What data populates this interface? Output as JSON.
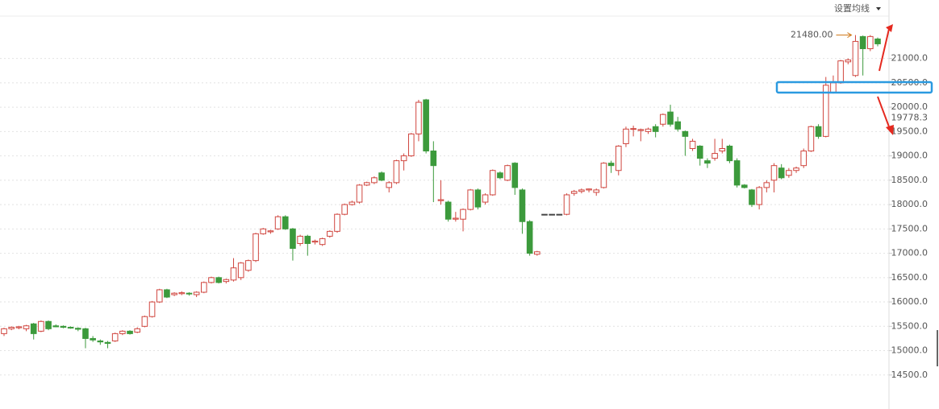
{
  "chart_data": {
    "type": "candlestick",
    "menu_label": "设置均线",
    "ylim": [
      14100,
      22200
    ],
    "yticks": [
      {
        "value": 14500,
        "label": "14500.0"
      },
      {
        "value": 15000,
        "label": "15000.0"
      },
      {
        "value": 15500,
        "label": "15500.0"
      },
      {
        "value": 16000,
        "label": "16000.0"
      },
      {
        "value": 16500,
        "label": "16500.0"
      },
      {
        "value": 17000,
        "label": "17000.0"
      },
      {
        "value": 17500,
        "label": "17500.0"
      },
      {
        "value": 18000,
        "label": "18000.0"
      },
      {
        "value": 18500,
        "label": "18500.0"
      },
      {
        "value": 19000,
        "label": "19000.0"
      },
      {
        "value": 19500,
        "label": "19500.0"
      },
      {
        "value": 20000,
        "label": "20000.0"
      },
      {
        "value": 20500,
        "label": "20500.0"
      },
      {
        "value": 21000,
        "label": "21000.0"
      }
    ],
    "price_marker": 19778.3,
    "high_annotation": {
      "value": 21480,
      "label": "21480.00"
    },
    "grid": true,
    "up_color": "#d0463f",
    "down_color": "#3c9a3c",
    "ohlc": [
      [
        15350,
        15470,
        15300,
        15450
      ],
      [
        15450,
        15500,
        15420,
        15480
      ],
      [
        15470,
        15510,
        15440,
        15490
      ],
      [
        15450,
        15530,
        15400,
        15510
      ],
      [
        15550,
        15570,
        15230,
        15350
      ],
      [
        15400,
        15620,
        15380,
        15600
      ],
      [
        15600,
        15620,
        15420,
        15450
      ],
      [
        15510,
        15540,
        15480,
        15490
      ],
      [
        15500,
        15520,
        15460,
        15480
      ],
      [
        15480,
        15500,
        15450,
        15470
      ],
      [
        15460,
        15480,
        15400,
        15440
      ],
      [
        15450,
        15470,
        15050,
        15250
      ],
      [
        15250,
        15300,
        15180,
        15220
      ],
      [
        15200,
        15230,
        15120,
        15180
      ],
      [
        15170,
        15200,
        15050,
        15150
      ],
      [
        15200,
        15370,
        15180,
        15350
      ],
      [
        15350,
        15420,
        15320,
        15400
      ],
      [
        15400,
        15420,
        15330,
        15350
      ],
      [
        15380,
        15480,
        15360,
        15450
      ],
      [
        15500,
        15720,
        15480,
        15700
      ],
      [
        15700,
        16020,
        15680,
        16000
      ],
      [
        16000,
        16270,
        15980,
        16250
      ],
      [
        16250,
        16270,
        16080,
        16100
      ],
      [
        16150,
        16200,
        16120,
        16180
      ],
      [
        16170,
        16220,
        16140,
        16190
      ],
      [
        16180,
        16200,
        16130,
        16170
      ],
      [
        16150,
        16220,
        16100,
        16200
      ],
      [
        16200,
        16420,
        16180,
        16400
      ],
      [
        16400,
        16520,
        16380,
        16500
      ],
      [
        16500,
        16520,
        16380,
        16400
      ],
      [
        16420,
        16480,
        16380,
        16460
      ],
      [
        16450,
        16900,
        16420,
        16700
      ],
      [
        16500,
        16820,
        16450,
        16800
      ],
      [
        16650,
        16870,
        16620,
        16850
      ],
      [
        16850,
        17420,
        16820,
        17400
      ],
      [
        17400,
        17520,
        17380,
        17500
      ],
      [
        17440,
        17480,
        17400,
        17460
      ],
      [
        17500,
        17780,
        17480,
        17750
      ],
      [
        17750,
        17780,
        17480,
        17500
      ],
      [
        17500,
        17520,
        16850,
        17100
      ],
      [
        17200,
        17380,
        17150,
        17350
      ],
      [
        17350,
        17380,
        16950,
        17200
      ],
      [
        17230,
        17280,
        17180,
        17250
      ],
      [
        17180,
        17320,
        17150,
        17300
      ],
      [
        17350,
        17470,
        17320,
        17450
      ],
      [
        17450,
        17820,
        17420,
        17800
      ],
      [
        17800,
        18020,
        17780,
        18000
      ],
      [
        18000,
        18080,
        17980,
        18050
      ],
      [
        18050,
        18420,
        18020,
        18400
      ],
      [
        18400,
        18470,
        18380,
        18450
      ],
      [
        18450,
        18580,
        18420,
        18550
      ],
      [
        18650,
        18680,
        18480,
        18500
      ],
      [
        18350,
        18480,
        18250,
        18450
      ],
      [
        18450,
        18920,
        18420,
        18900
      ],
      [
        18900,
        19050,
        18700,
        19000
      ],
      [
        19000,
        19470,
        18980,
        19450
      ],
      [
        19450,
        20150,
        19300,
        20100
      ],
      [
        20150,
        20170,
        19050,
        19100
      ],
      [
        19100,
        19300,
        18050,
        18800
      ],
      [
        18080,
        18500,
        18000,
        18100
      ],
      [
        18050,
        18080,
        17650,
        17700
      ],
      [
        17700,
        17850,
        17650,
        17720
      ],
      [
        17700,
        17920,
        17450,
        17900
      ],
      [
        17900,
        18320,
        17880,
        18300
      ],
      [
        18300,
        18330,
        17900,
        17950
      ],
      [
        18050,
        18230,
        18000,
        18200
      ],
      [
        18200,
        18720,
        18180,
        18700
      ],
      [
        18650,
        18680,
        18520,
        18550
      ],
      [
        18500,
        18820,
        18480,
        18800
      ],
      [
        18850,
        18870,
        18200,
        18350
      ],
      [
        18300,
        18330,
        17400,
        17650
      ],
      [
        17650,
        17680,
        16950,
        17000
      ],
      [
        16980,
        17050,
        16950,
        17030
      ],
      [
        17800,
        17800,
        17800,
        17800
      ],
      [
        17800,
        17800,
        17800,
        17800
      ],
      [
        17800,
        17800,
        17800,
        17800
      ],
      [
        17800,
        18230,
        17780,
        18200
      ],
      [
        18230,
        18300,
        18180,
        18270
      ],
      [
        18270,
        18330,
        18230,
        18300
      ],
      [
        18300,
        18330,
        18250,
        18320
      ],
      [
        18250,
        18330,
        18180,
        18300
      ],
      [
        18350,
        18870,
        18330,
        18850
      ],
      [
        18850,
        18900,
        18650,
        18800
      ],
      [
        18700,
        19220,
        18600,
        19200
      ],
      [
        19250,
        19600,
        19180,
        19550
      ],
      [
        19550,
        19620,
        19400,
        19560
      ],
      [
        19520,
        19560,
        19300,
        19540
      ],
      [
        19500,
        19580,
        19450,
        19550
      ],
      [
        19600,
        19650,
        19380,
        19500
      ],
      [
        19650,
        19870,
        19600,
        19850
      ],
      [
        19900,
        20050,
        19600,
        19650
      ],
      [
        19700,
        19800,
        19500,
        19550
      ],
      [
        19500,
        19520,
        19000,
        19400
      ],
      [
        19150,
        19350,
        19100,
        19300
      ],
      [
        19200,
        19220,
        18800,
        18950
      ],
      [
        18900,
        18950,
        18750,
        18850
      ],
      [
        18950,
        19350,
        18900,
        19050
      ],
      [
        19100,
        19350,
        19050,
        19150
      ],
      [
        19200,
        19230,
        18850,
        18900
      ],
      [
        18900,
        18950,
        18350,
        18400
      ],
      [
        18400,
        18420,
        18330,
        18350
      ],
      [
        18300,
        18320,
        17950,
        18000
      ],
      [
        18000,
        18380,
        17900,
        18350
      ],
      [
        18350,
        18500,
        18250,
        18450
      ],
      [
        18500,
        18850,
        18250,
        18800
      ],
      [
        18750,
        18830,
        18520,
        18550
      ],
      [
        18600,
        18750,
        18550,
        18700
      ],
      [
        18700,
        18780,
        18650,
        18750
      ],
      [
        18800,
        19150,
        18750,
        19100
      ],
      [
        19100,
        19620,
        19080,
        19600
      ],
      [
        19600,
        19650,
        19350,
        19400
      ],
      [
        19400,
        20620,
        19380,
        20450
      ],
      [
        20300,
        20650,
        20280,
        20500
      ],
      [
        20500,
        20970,
        20480,
        20950
      ],
      [
        20930,
        21000,
        20880,
        20970
      ],
      [
        20650,
        21480,
        20620,
        21350
      ],
      [
        21450,
        21470,
        20650,
        21200
      ],
      [
        21200,
        21480,
        21150,
        21450
      ],
      [
        21400,
        21430,
        21250,
        21300
      ]
    ]
  }
}
